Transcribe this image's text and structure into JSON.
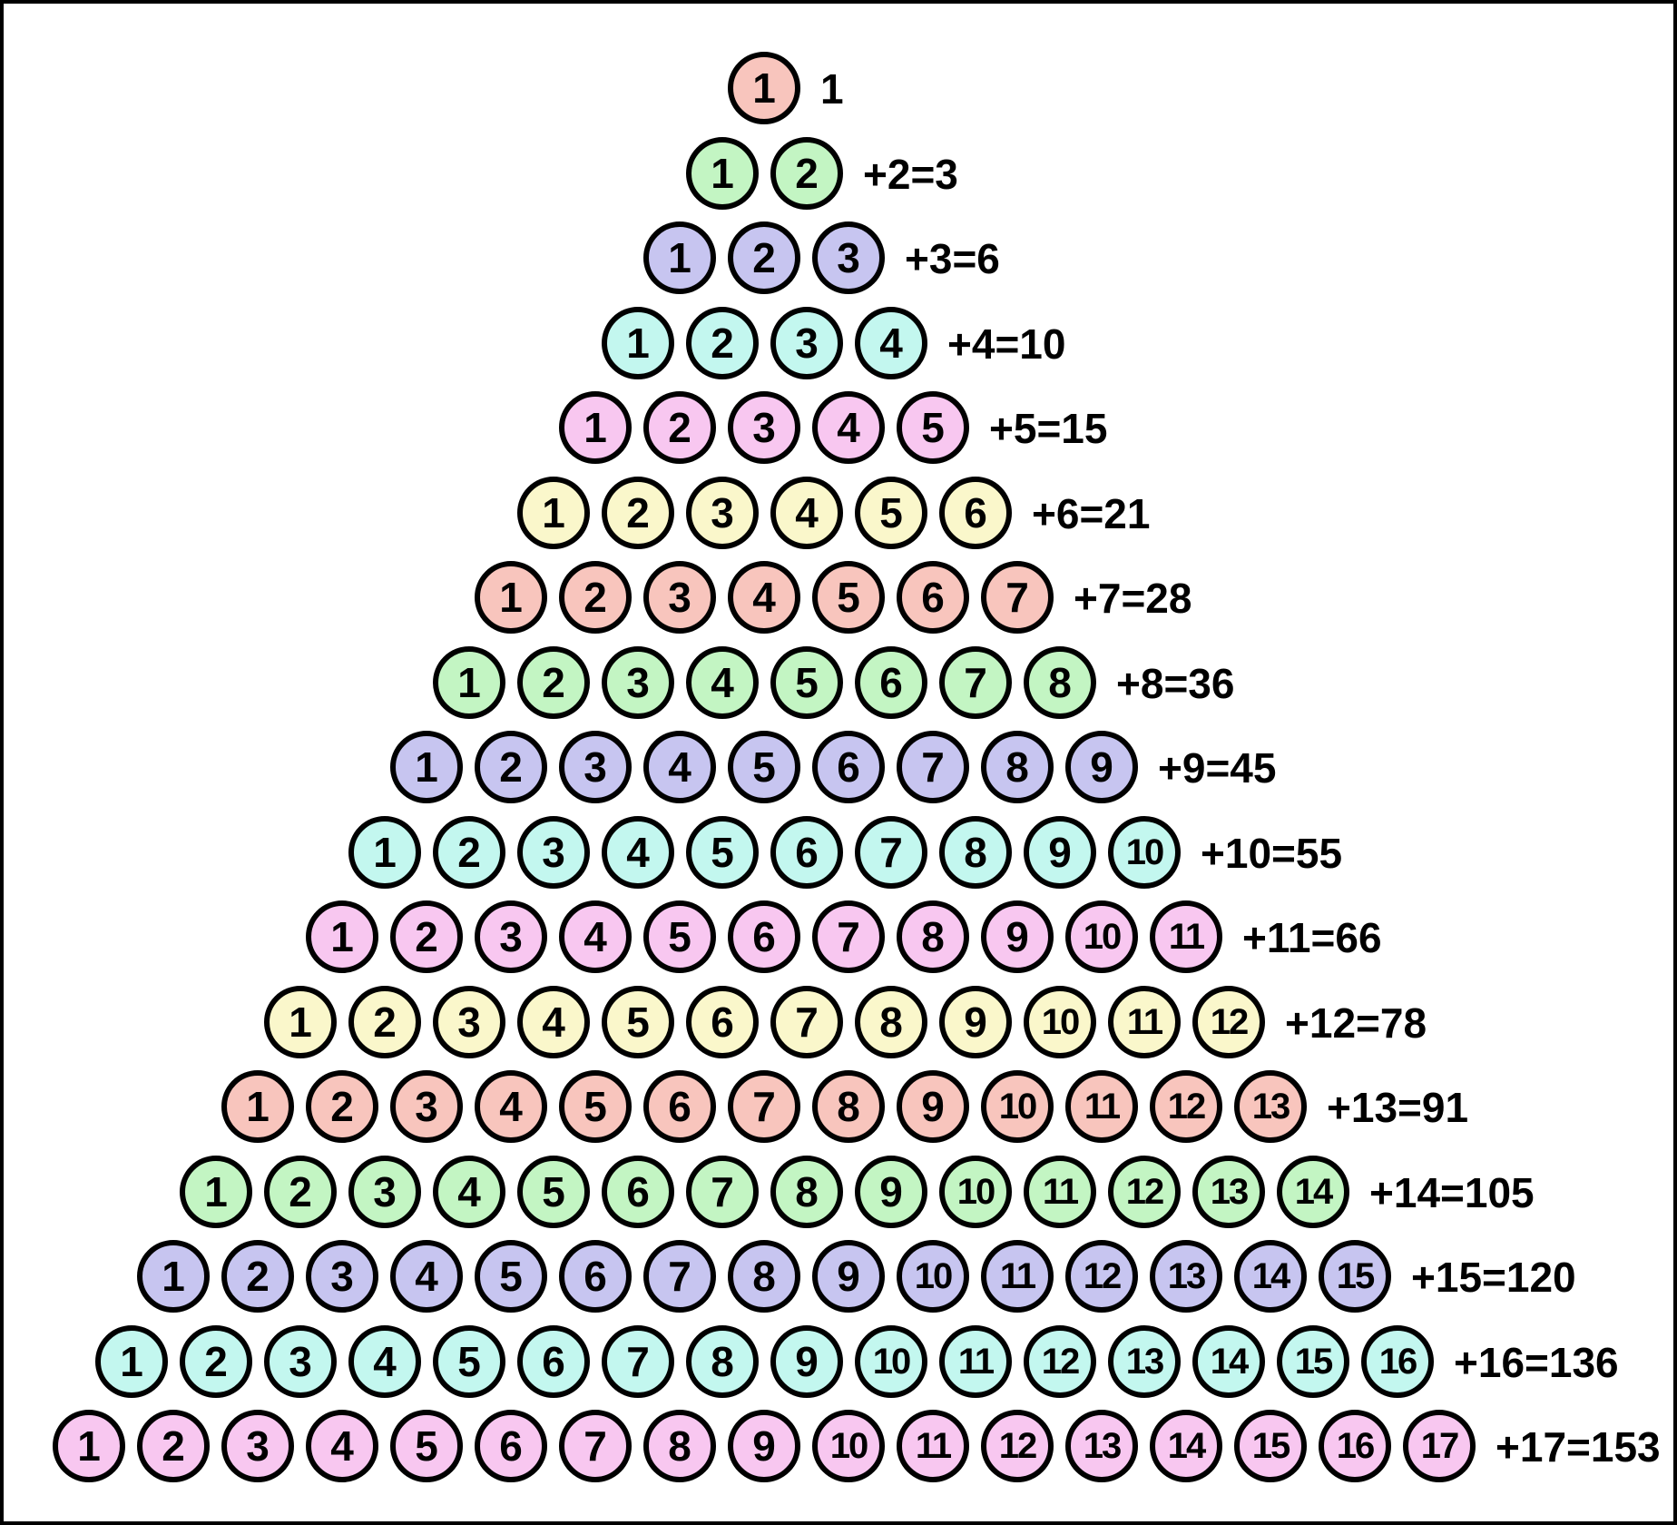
{
  "figure": {
    "palette": {
      "salmon": "#F8C5BD",
      "green": "#C3F5C3",
      "lavender": "#C7C5F0",
      "cyan": "#C3F7EF",
      "magenta": "#F8C7F0",
      "yellow": "#FAF7CB",
      "outline": "#000000",
      "background": "#FFFFFF"
    },
    "rows": [
      {
        "color": "salmon",
        "numbers": [
          "1"
        ],
        "label": "1"
      },
      {
        "color": "green",
        "numbers": [
          "1",
          "2"
        ],
        "label": "+2=3"
      },
      {
        "color": "lavender",
        "numbers": [
          "1",
          "2",
          "3"
        ],
        "label": "+3=6"
      },
      {
        "color": "cyan",
        "numbers": [
          "1",
          "2",
          "3",
          "4"
        ],
        "label": "+4=10"
      },
      {
        "color": "magenta",
        "numbers": [
          "1",
          "2",
          "3",
          "4",
          "5"
        ],
        "label": "+5=15"
      },
      {
        "color": "yellow",
        "numbers": [
          "1",
          "2",
          "3",
          "4",
          "5",
          "6"
        ],
        "label": "+6=21"
      },
      {
        "color": "salmon",
        "numbers": [
          "1",
          "2",
          "3",
          "4",
          "5",
          "6",
          "7"
        ],
        "label": "+7=28"
      },
      {
        "color": "green",
        "numbers": [
          "1",
          "2",
          "3",
          "4",
          "5",
          "6",
          "7",
          "8"
        ],
        "label": "+8=36"
      },
      {
        "color": "lavender",
        "numbers": [
          "1",
          "2",
          "3",
          "4",
          "5",
          "6",
          "7",
          "8",
          "9"
        ],
        "label": "+9=45"
      },
      {
        "color": "cyan",
        "numbers": [
          "1",
          "2",
          "3",
          "4",
          "5",
          "6",
          "7",
          "8",
          "9",
          "10"
        ],
        "label": "+10=55"
      },
      {
        "color": "magenta",
        "numbers": [
          "1",
          "2",
          "3",
          "4",
          "5",
          "6",
          "7",
          "8",
          "9",
          "10",
          "11"
        ],
        "label": "+11=66"
      },
      {
        "color": "yellow",
        "numbers": [
          "1",
          "2",
          "3",
          "4",
          "5",
          "6",
          "7",
          "8",
          "9",
          "10",
          "11",
          "12"
        ],
        "label": "+12=78"
      },
      {
        "color": "salmon",
        "numbers": [
          "1",
          "2",
          "3",
          "4",
          "5",
          "6",
          "7",
          "8",
          "9",
          "10",
          "11",
          "12",
          "13"
        ],
        "label": "+13=91"
      },
      {
        "color": "green",
        "numbers": [
          "1",
          "2",
          "3",
          "4",
          "5",
          "6",
          "7",
          "8",
          "9",
          "10",
          "11",
          "12",
          "13",
          "14"
        ],
        "label": "+14=105"
      },
      {
        "color": "lavender",
        "numbers": [
          "1",
          "2",
          "3",
          "4",
          "5",
          "6",
          "7",
          "8",
          "9",
          "10",
          "11",
          "12",
          "13",
          "14",
          "15"
        ],
        "label": "+15=120"
      },
      {
        "color": "cyan",
        "numbers": [
          "1",
          "2",
          "3",
          "4",
          "5",
          "6",
          "7",
          "8",
          "9",
          "10",
          "11",
          "12",
          "13",
          "14",
          "15",
          "16"
        ],
        "label": "+16=136"
      },
      {
        "color": "magenta",
        "numbers": [
          "1",
          "2",
          "3",
          "4",
          "5",
          "6",
          "7",
          "8",
          "9",
          "10",
          "11",
          "12",
          "13",
          "14",
          "15",
          "16",
          "17"
        ],
        "label": "+17=153"
      }
    ]
  }
}
